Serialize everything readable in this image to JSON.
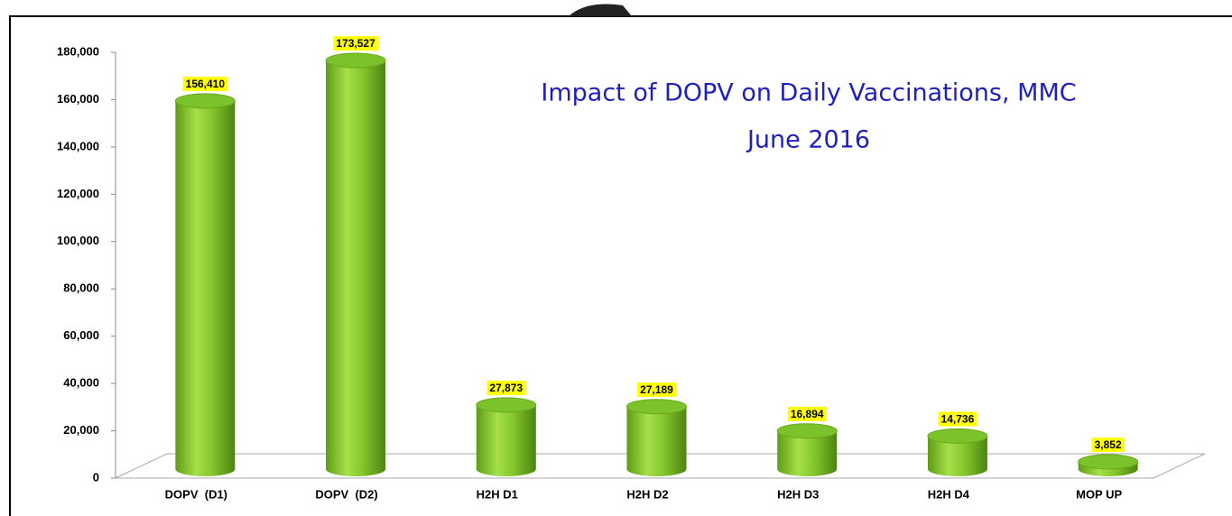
{
  "chart_data": {
    "type": "bar",
    "title": "Impact of DOPV on Daily Vaccinations, MMC",
    "subtitle": "June 2016",
    "categories": [
      "DOPV  (D1)",
      "DOPV  (D2)",
      "H2H D1",
      "H2H D2",
      "H2H D3",
      "H2H D4",
      "MOP UP"
    ],
    "values": [
      156410,
      173527,
      27873,
      27189,
      16894,
      14736,
      3852
    ],
    "value_labels": [
      "156,410",
      "173,527",
      "27,873",
      "27,189",
      "16,894",
      "14,736",
      "3,852"
    ],
    "color": "#7cc22a",
    "ylim": [
      0,
      180000
    ],
    "yticks": [
      0,
      {
        "value": 20000,
        "label": "20,000"
      },
      {
        "value": 40000,
        "label": "40,000"
      },
      {
        "value": 60000,
        "label": "60,000"
      },
      {
        "value": 80000,
        "label": "80,000"
      },
      {
        "value": 100000,
        "label": "100,000"
      },
      {
        "value": 120000,
        "label": "120,000"
      },
      {
        "value": 140000,
        "label": "140,000"
      },
      {
        "value": 160000,
        "label": "160,000"
      },
      {
        "value": 180000,
        "label": "180,000"
      }
    ],
    "grid": false
  }
}
